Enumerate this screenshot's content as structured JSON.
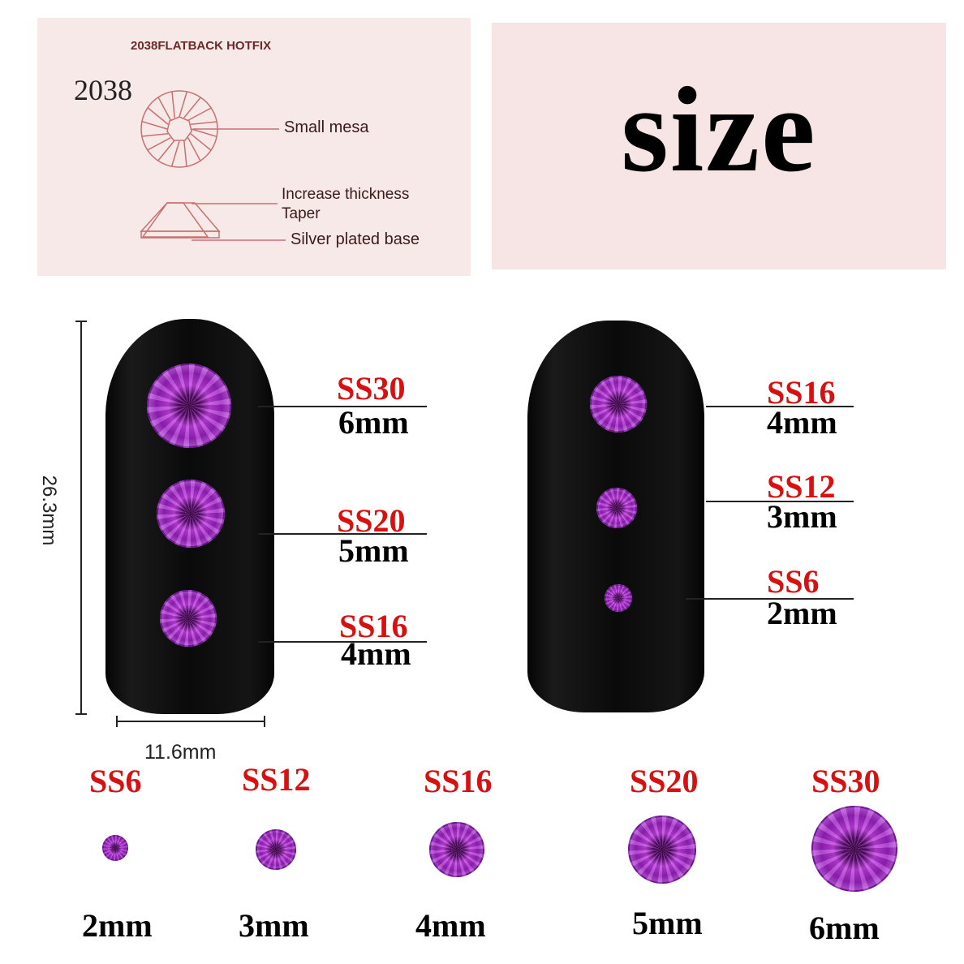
{
  "diagram": {
    "header": "2038FLATBACK HOTFIX",
    "model": "2038",
    "labels": [
      "Small mesa",
      "Increase thickness",
      "Taper",
      "Silver plated base"
    ]
  },
  "title": "size",
  "dimensions": {
    "length": "26.3mm",
    "width": "11.6mm"
  },
  "left_nail": [
    {
      "code": "SS30",
      "size": "6mm"
    },
    {
      "code": "SS20",
      "size": "5mm"
    },
    {
      "code": "SS16",
      "size": "4mm"
    }
  ],
  "right_nail": [
    {
      "code": "SS16",
      "size": "4mm"
    },
    {
      "code": "SS12",
      "size": "3mm"
    },
    {
      "code": "SS6",
      "size": "2mm"
    }
  ],
  "row": [
    {
      "code": "SS6",
      "size": "2mm"
    },
    {
      "code": "SS12",
      "size": "3mm"
    },
    {
      "code": "SS16",
      "size": "4mm"
    },
    {
      "code": "SS20",
      "size": "5mm"
    },
    {
      "code": "SS30",
      "size": "6mm"
    }
  ],
  "colors": {
    "label_red": "#d81010",
    "gem": "#b030d0",
    "panel": "#f8e9e9"
  }
}
